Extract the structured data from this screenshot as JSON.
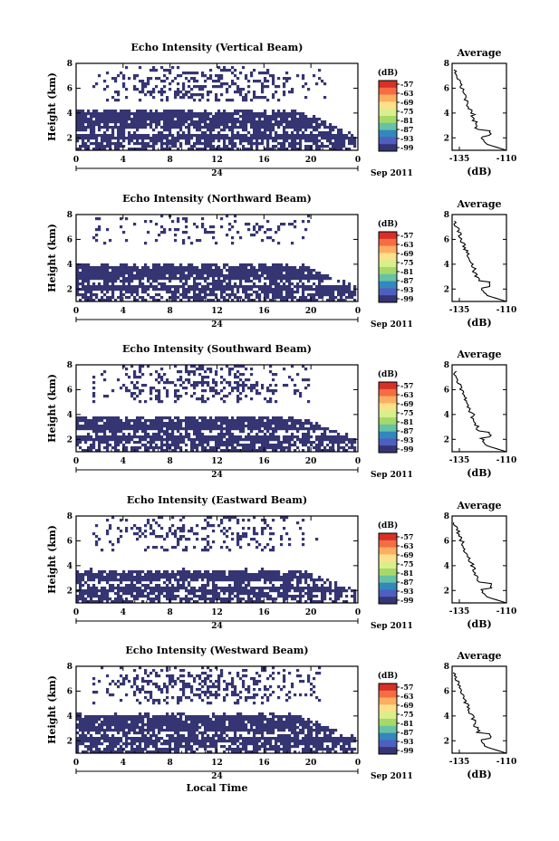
{
  "chart_data": [
    {
      "type": "heatmap",
      "title": "Echo Intensity (Vertical Beam)",
      "xlabel": "",
      "ylabel": "Height (km)",
      "xticks": [
        "0",
        "4",
        "8",
        "12",
        "16",
        "20",
        "0"
      ],
      "yticks": [
        "2",
        "4",
        "6",
        "8"
      ],
      "xlim": [
        0,
        24
      ],
      "ylim": [
        1,
        8
      ],
      "date_label": "24",
      "date_suffix": "Sep 2011",
      "colorbar": {
        "unit": "(dB)",
        "ticks": [
          "-57",
          "-63",
          "-69",
          "-75",
          "-81",
          "-87",
          "-93",
          "-99"
        ]
      },
      "average": {
        "title": "Average",
        "xlabel": "(dB)",
        "xticks": [
          "-135",
          "-110"
        ],
        "yticks": [
          "2",
          "4",
          "6",
          "8"
        ]
      },
      "lower_layer_top_km": 4.2,
      "upper_band_km": [
        5.0,
        7.8
      ],
      "upper_density": 0.42,
      "upper_end_hour": 22
    },
    {
      "type": "heatmap",
      "title": "Echo Intensity (Northward Beam)",
      "xlabel": "",
      "ylabel": "Height (km)",
      "xticks": [
        "0",
        "4",
        "8",
        "12",
        "16",
        "20",
        "0"
      ],
      "yticks": [
        "2",
        "4",
        "6",
        "8"
      ],
      "xlim": [
        0,
        24
      ],
      "ylim": [
        1,
        8
      ],
      "date_label": "24",
      "date_suffix": "Sep 2011",
      "colorbar": {
        "unit": "(dB)",
        "ticks": [
          "-57",
          "-63",
          "-69",
          "-75",
          "-81",
          "-87",
          "-93",
          "-99"
        ]
      },
      "average": {
        "title": "Average",
        "xlabel": "(dB)",
        "xticks": [
          "-135",
          "-110"
        ],
        "yticks": [
          "2",
          "4",
          "6",
          "8"
        ]
      },
      "lower_layer_top_km": 4.0,
      "upper_band_km": [
        5.5,
        7.9
      ],
      "upper_density": 0.22,
      "upper_end_hour": 20
    },
    {
      "type": "heatmap",
      "title": "Echo Intensity (Southward Beam)",
      "xlabel": "",
      "ylabel": "Height (km)",
      "xticks": [
        "0",
        "4",
        "8",
        "12",
        "16",
        "20",
        "0"
      ],
      "yticks": [
        "2",
        "4",
        "6",
        "8"
      ],
      "xlim": [
        0,
        24
      ],
      "ylim": [
        1,
        8
      ],
      "date_label": "24",
      "date_suffix": "Sep 2011",
      "colorbar": {
        "unit": "(dB)",
        "ticks": [
          "-57",
          "-63",
          "-69",
          "-75",
          "-81",
          "-87",
          "-93",
          "-99"
        ]
      },
      "average": {
        "title": "Average",
        "xlabel": "(dB)",
        "xticks": [
          "-135",
          "-110"
        ],
        "yticks": [
          "2",
          "4",
          "6",
          "8"
        ]
      },
      "lower_layer_top_km": 3.8,
      "upper_band_km": [
        5.0,
        7.9
      ],
      "upper_density": 0.4,
      "upper_end_hour": 20
    },
    {
      "type": "heatmap",
      "title": "Echo Intensity (Eastward Beam)",
      "xlabel": "",
      "ylabel": "Height (km)",
      "xticks": [
        "0",
        "4",
        "8",
        "12",
        "16",
        "20",
        "0"
      ],
      "yticks": [
        "2",
        "4",
        "6",
        "8"
      ],
      "xlim": [
        0,
        24
      ],
      "ylim": [
        1,
        8
      ],
      "date_label": "24",
      "date_suffix": "Sep 2011",
      "colorbar": {
        "unit": "(dB)",
        "ticks": [
          "-57",
          "-63",
          "-69",
          "-75",
          "-81",
          "-87",
          "-93",
          "-99"
        ]
      },
      "average": {
        "title": "Average",
        "xlabel": "(dB)",
        "xticks": [
          "-135",
          "-110"
        ],
        "yticks": [
          "2",
          "4",
          "6",
          "8"
        ]
      },
      "lower_layer_top_km": 3.6,
      "upper_band_km": [
        5.2,
        7.9
      ],
      "upper_density": 0.32,
      "upper_end_hour": 21
    },
    {
      "type": "heatmap",
      "title": "Echo Intensity (Westward Beam)",
      "xlabel": "Local Time",
      "ylabel": "Height (km)",
      "xticks": [
        "0",
        "4",
        "8",
        "12",
        "16",
        "20",
        "0"
      ],
      "yticks": [
        "2",
        "4",
        "6",
        "8"
      ],
      "xlim": [
        0,
        24
      ],
      "ylim": [
        1,
        8
      ],
      "date_label": "24",
      "date_suffix": "Sep 2011",
      "colorbar": {
        "unit": "(dB)",
        "ticks": [
          "-57",
          "-63",
          "-69",
          "-75",
          "-81",
          "-87",
          "-93",
          "-99"
        ]
      },
      "average": {
        "title": "Average",
        "xlabel": "(dB)",
        "xticks": [
          "-135",
          "-110"
        ],
        "yticks": [
          "2",
          "4",
          "6",
          "8"
        ]
      },
      "lower_layer_top_km": 4.1,
      "upper_band_km": [
        5.0,
        7.9
      ],
      "upper_density": 0.42,
      "upper_end_hour": 21
    }
  ],
  "colors": {
    "echo": "#353573",
    "colorbar": [
      "#d73027",
      "#f46d43",
      "#fdae61",
      "#fee08b",
      "#d9ef8b",
      "#a6d96a",
      "#66c2a5",
      "#3288bd",
      "#4f5fc0",
      "#353573"
    ]
  }
}
